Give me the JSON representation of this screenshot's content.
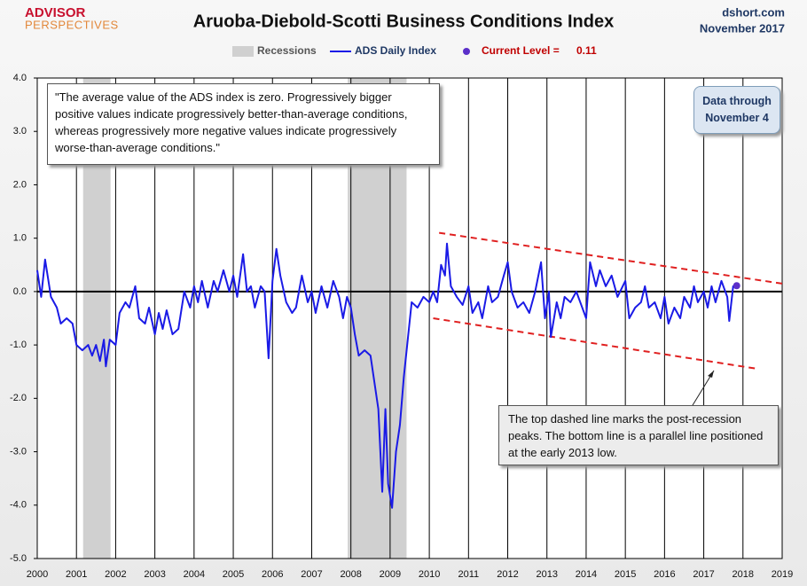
{
  "chart_data": {
    "type": "line",
    "title": "Aruoba-Diebold-Scotti Business Conditions Index",
    "logo": {
      "top": "ADVISOR",
      "bottom": "PERSPECTIVES"
    },
    "source": "dshort.com",
    "date": "November 2017",
    "x": [
      2000.0,
      2000.1,
      2000.2,
      2000.35,
      2000.5,
      2000.6,
      2000.75,
      2000.9,
      2001.0,
      2001.15,
      2001.3,
      2001.4,
      2001.5,
      2001.6,
      2001.7,
      2001.75,
      2001.85,
      2002.0,
      2002.1,
      2002.25,
      2002.35,
      2002.5,
      2002.6,
      2002.75,
      2002.85,
      2003.0,
      2003.1,
      2003.2,
      2003.3,
      2003.45,
      2003.6,
      2003.75,
      2003.9,
      2004.0,
      2004.1,
      2004.2,
      2004.35,
      2004.5,
      2004.6,
      2004.75,
      2004.9,
      2005.0,
      2005.1,
      2005.25,
      2005.35,
      2005.45,
      2005.55,
      2005.7,
      2005.8,
      2005.9,
      2006.0,
      2006.1,
      2006.2,
      2006.35,
      2006.5,
      2006.6,
      2006.75,
      2006.9,
      2007.0,
      2007.1,
      2007.25,
      2007.4,
      2007.55,
      2007.7,
      2007.8,
      2007.9,
      2008.0,
      2008.1,
      2008.2,
      2008.35,
      2008.5,
      2008.6,
      2008.7,
      2008.8,
      2008.88,
      2008.95,
      2009.05,
      2009.15,
      2009.25,
      2009.35,
      2009.45,
      2009.55,
      2009.7,
      2009.85,
      2010.0,
      2010.1,
      2010.2,
      2010.3,
      2010.4,
      2010.45,
      2010.55,
      2010.7,
      2010.85,
      2011.0,
      2011.1,
      2011.25,
      2011.35,
      2011.5,
      2011.6,
      2011.75,
      2011.9,
      2012.0,
      2012.1,
      2012.25,
      2012.4,
      2012.55,
      2012.7,
      2012.85,
      2012.95,
      2013.05,
      2013.1,
      2013.25,
      2013.35,
      2013.45,
      2013.6,
      2013.75,
      2013.9,
      2014.0,
      2014.1,
      2014.25,
      2014.35,
      2014.5,
      2014.65,
      2014.8,
      2015.0,
      2015.1,
      2015.25,
      2015.4,
      2015.5,
      2015.6,
      2015.75,
      2015.9,
      2016.0,
      2016.1,
      2016.25,
      2016.4,
      2016.5,
      2016.65,
      2016.75,
      2016.85,
      2017.0,
      2017.1,
      2017.2,
      2017.3,
      2017.45,
      2017.6,
      2017.65,
      2017.75,
      2017.84
    ],
    "series": [
      {
        "name": "ADS Daily Index",
        "color": "#1a1ae6",
        "values": [
          0.4,
          -0.1,
          0.6,
          -0.1,
          -0.3,
          -0.6,
          -0.5,
          -0.6,
          -1.0,
          -1.1,
          -1.0,
          -1.2,
          -1.0,
          -1.3,
          -0.9,
          -1.4,
          -0.9,
          -1.0,
          -0.4,
          -0.2,
          -0.3,
          0.1,
          -0.5,
          -0.6,
          -0.3,
          -0.8,
          -0.4,
          -0.7,
          -0.35,
          -0.8,
          -0.7,
          0.0,
          -0.3,
          0.1,
          -0.2,
          0.2,
          -0.3,
          0.2,
          0.0,
          0.4,
          0.0,
          0.3,
          -0.1,
          0.7,
          0.0,
          0.1,
          -0.3,
          0.1,
          0.0,
          -1.25,
          0.2,
          0.8,
          0.3,
          -0.2,
          -0.4,
          -0.3,
          0.3,
          -0.2,
          0.0,
          -0.4,
          0.1,
          -0.3,
          0.2,
          -0.1,
          -0.5,
          -0.1,
          -0.3,
          -0.8,
          -1.2,
          -1.1,
          -1.2,
          -1.7,
          -2.2,
          -3.75,
          -2.2,
          -3.6,
          -4.05,
          -3.0,
          -2.5,
          -1.6,
          -0.9,
          -0.2,
          -0.3,
          -0.1,
          -0.2,
          0.0,
          -0.2,
          0.5,
          0.3,
          0.9,
          0.1,
          -0.1,
          -0.25,
          0.1,
          -0.4,
          -0.2,
          -0.5,
          0.1,
          -0.2,
          -0.1,
          0.3,
          0.55,
          0.0,
          -0.3,
          -0.2,
          -0.4,
          0.0,
          0.55,
          -0.5,
          0.0,
          -0.85,
          -0.2,
          -0.5,
          -0.1,
          -0.2,
          0.0,
          -0.3,
          -0.5,
          0.55,
          0.1,
          0.4,
          0.1,
          0.3,
          -0.1,
          0.2,
          -0.5,
          -0.3,
          -0.2,
          0.1,
          -0.3,
          -0.2,
          -0.5,
          -0.1,
          -0.6,
          -0.3,
          -0.5,
          -0.1,
          -0.3,
          0.1,
          -0.2,
          0.0,
          -0.3,
          0.1,
          -0.2,
          0.2,
          -0.1,
          -0.55,
          0.1,
          0.11
        ]
      }
    ],
    "recessions": {
      "name": "Recessions",
      "color": "#d0d0d0",
      "spans": [
        [
          2001.17,
          2001.87
        ],
        [
          2007.92,
          2009.42
        ]
      ]
    },
    "current_level": {
      "label": "Current Level =",
      "value": 0.11,
      "x": 2017.84,
      "color": "#5b2fc9"
    },
    "trend_lines": [
      {
        "x": [
          2010.25,
          2019.0
        ],
        "y": [
          1.1,
          0.15
        ],
        "color": "#e02020"
      },
      {
        "x": [
          2010.1,
          2018.4
        ],
        "y": [
          -0.5,
          -1.45
        ],
        "color": "#e02020"
      }
    ],
    "xlim": [
      2000,
      2019
    ],
    "xticks": [
      2000,
      2001,
      2002,
      2003,
      2004,
      2005,
      2006,
      2007,
      2008,
      2009,
      2010,
      2011,
      2012,
      2013,
      2014,
      2015,
      2016,
      2017,
      2018,
      2019
    ],
    "ylim": [
      -5,
      4
    ],
    "yticks": [
      {
        "value": 4,
        "label": "4.0"
      },
      {
        "value": 3,
        "label": "3.0"
      },
      {
        "value": 2,
        "label": "2.0"
      },
      {
        "value": 1,
        "label": "1.0"
      },
      {
        "value": 0,
        "label": "0.0"
      },
      {
        "value": -1,
        "label": "-1.0"
      },
      {
        "value": -2,
        "label": "-2.0"
      },
      {
        "value": -3,
        "label": "-3.0"
      },
      {
        "value": -4,
        "label": "-4.0"
      },
      {
        "value": -5,
        "label": "-5.0"
      }
    ],
    "annotations": {
      "quote": "\"The average value of the ADS index is zero. Progressively bigger positive values indicate progressively better-than-average conditions, whereas progressively more negative values indicate progressively worse-than-average conditions.\"",
      "data_through": "Data through\nNovember 4",
      "note": "The top dashed line marks the post-recession peaks. The bottom  line is a parallel line positioned at the early 2013 low."
    }
  }
}
